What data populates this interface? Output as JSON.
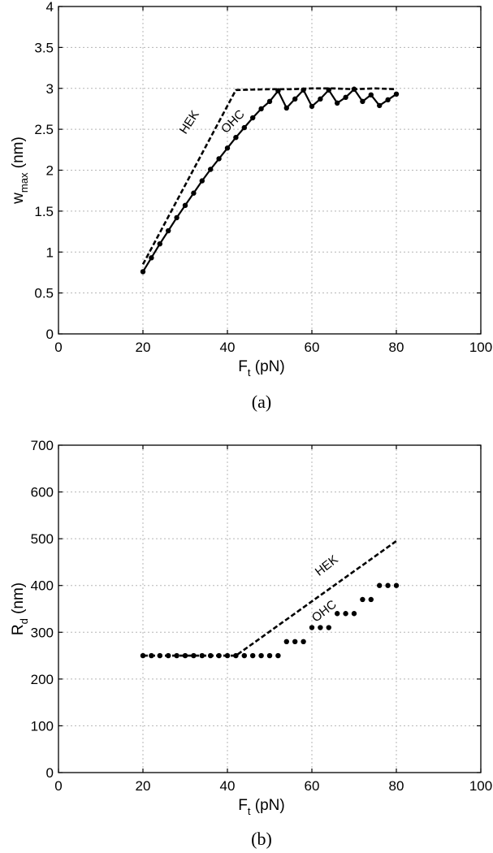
{
  "chart_data": [
    {
      "type": "line",
      "caption": "(a)",
      "xlabel": "F",
      "xlabel_sub": "t",
      "xlabel_unit": " (pN)",
      "ylabel": "w",
      "ylabel_sub": "max",
      "ylabel_unit": " (nm)",
      "xlim": [
        0,
        100
      ],
      "ylim": [
        0,
        4
      ],
      "xticks": [
        "0",
        "20",
        "40",
        "60",
        "80",
        "100"
      ],
      "yticks": [
        "0",
        "0.5",
        "1",
        "1.5",
        "2",
        "2.5",
        "3",
        "3.5",
        "4"
      ],
      "grid": true,
      "series": [
        {
          "name": "HEK",
          "style": "dashed",
          "x": [
            20,
            42,
            50,
            55,
            60,
            65,
            70,
            75,
            80
          ],
          "y": [
            0.85,
            2.98,
            2.99,
            2.99,
            3.0,
            3.0,
            2.99,
            3.0,
            2.99
          ]
        },
        {
          "name": "OHC",
          "style": "solid-markers",
          "x": [
            20,
            22,
            24,
            26,
            28,
            30,
            32,
            34,
            36,
            38,
            40,
            42,
            44,
            46,
            48,
            50,
            52,
            54,
            56,
            58,
            60,
            62,
            64,
            66,
            68,
            70,
            72,
            74,
            76,
            78,
            80
          ],
          "y": [
            0.76,
            0.93,
            1.1,
            1.26,
            1.42,
            1.57,
            1.72,
            1.87,
            2.01,
            2.14,
            2.27,
            2.4,
            2.52,
            2.64,
            2.75,
            2.84,
            2.97,
            2.76,
            2.87,
            2.98,
            2.78,
            2.87,
            2.98,
            2.82,
            2.89,
            2.99,
            2.84,
            2.92,
            2.79,
            2.86,
            2.93
          ]
        }
      ]
    },
    {
      "type": "scatter",
      "caption": "(b)",
      "xlabel": "F",
      "xlabel_sub": "t",
      "xlabel_unit": " (pN)",
      "ylabel": "R",
      "ylabel_sub": "d",
      "ylabel_unit": " (nm)",
      "xlim": [
        0,
        100
      ],
      "ylim": [
        0,
        700
      ],
      "xticks": [
        "0",
        "20",
        "40",
        "60",
        "80",
        "100"
      ],
      "yticks": [
        "0",
        "100",
        "200",
        "300",
        "400",
        "500",
        "600",
        "700"
      ],
      "grid": true,
      "series": [
        {
          "name": "HEK",
          "style": "dashed",
          "x": [
            20,
            42,
            80
          ],
          "y": [
            250,
            250,
            495
          ]
        },
        {
          "name": "OHC",
          "style": "markers",
          "x": [
            20,
            22,
            24,
            26,
            28,
            30,
            32,
            34,
            36,
            38,
            40,
            42,
            44,
            46,
            48,
            50,
            52,
            54,
            56,
            58,
            60,
            62,
            64,
            66,
            68,
            70,
            72,
            74,
            76,
            78,
            80
          ],
          "y": [
            250,
            250,
            250,
            250,
            250,
            250,
            250,
            250,
            250,
            250,
            250,
            250,
            250,
            250,
            250,
            250,
            250,
            280,
            280,
            280,
            310,
            310,
            310,
            340,
            340,
            340,
            370,
            370,
            400,
            400,
            400
          ]
        }
      ]
    }
  ]
}
